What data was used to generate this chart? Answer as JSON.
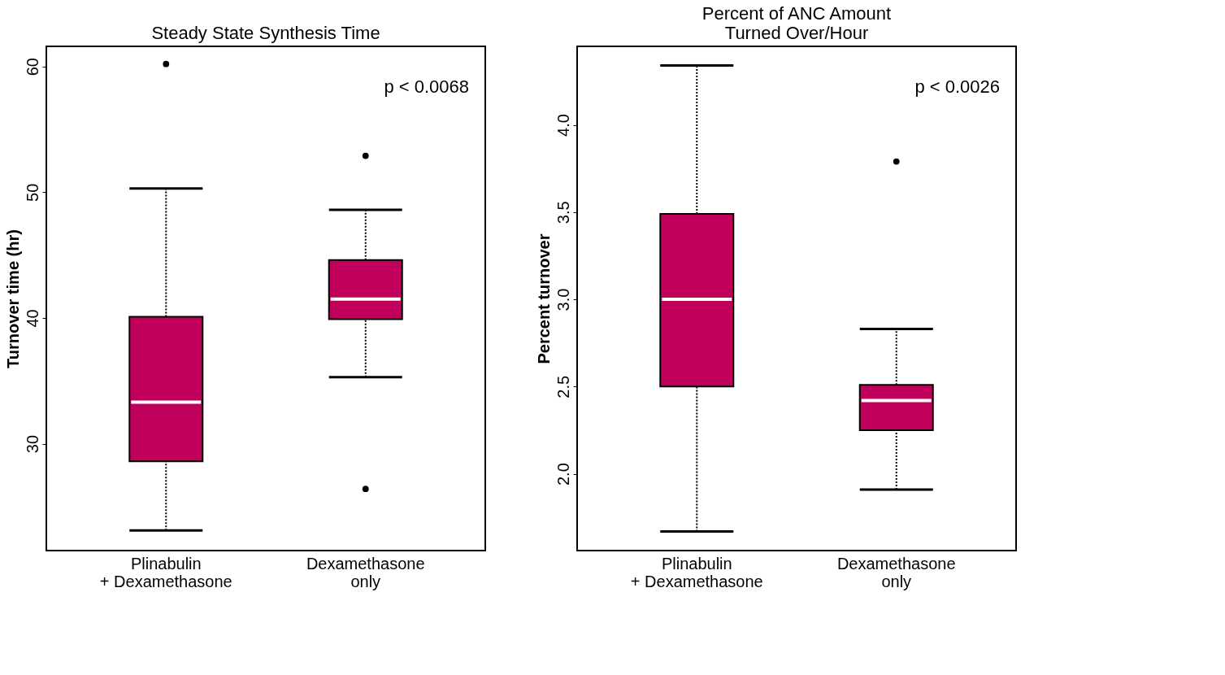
{
  "chart_data": [
    {
      "type": "box",
      "title": "Steady State Synthesis Time",
      "ylabel": "Turnover time (hr)",
      "categories": [
        "Plinabulin\n+ Dexamethasone",
        "Dexamethasone\nonly"
      ],
      "color": "#c0005a",
      "boxes": [
        {
          "low": 23.1,
          "q1": 28.6,
          "median": 33.3,
          "q3": 40.1,
          "high": 50.3,
          "outliers": [
            60.2
          ]
        },
        {
          "low": 35.3,
          "q1": 39.9,
          "median": 41.5,
          "q3": 44.6,
          "high": 48.6,
          "outliers": [
            52.9,
            26.4
          ]
        }
      ],
      "ylim": [
        21.5,
        61.6
      ],
      "yticks": [
        30,
        40,
        50,
        60
      ],
      "grid": false,
      "annotations": [
        "p < 0.0068"
      ]
    },
    {
      "type": "box",
      "title": "Percent of ANC Amount\nTurned Over/Hour",
      "ylabel": "Percent turnover",
      "categories": [
        "Plinabulin\n+ Dexamethasone",
        "Dexamethasone\nonly"
      ],
      "color": "#c0005a",
      "boxes": [
        {
          "low": 1.67,
          "q1": 2.5,
          "median": 3.0,
          "q3": 3.49,
          "high": 4.34
        },
        {
          "low": 1.91,
          "q1": 2.25,
          "median": 2.42,
          "q3": 2.51,
          "high": 2.83,
          "outliers": [
            3.79
          ]
        }
      ],
      "ylim": [
        1.56,
        4.45
      ],
      "yticks": [
        {
          "value": 2,
          "label": "2.0"
        },
        2.5,
        {
          "value": 3,
          "label": "3.0"
        },
        3.5,
        {
          "value": 4,
          "label": "4.0"
        }
      ],
      "grid": false,
      "annotations": [
        "p < 0.0026"
      ]
    }
  ]
}
